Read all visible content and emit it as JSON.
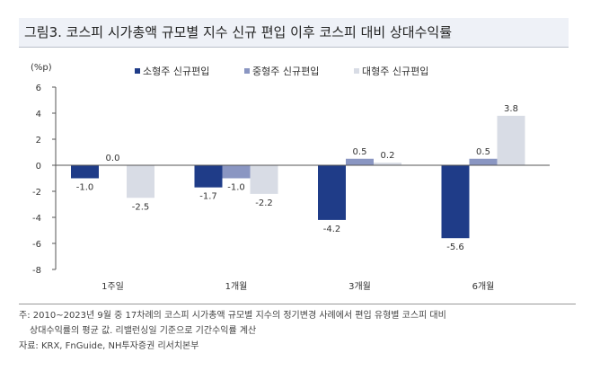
{
  "title": "그림3. 코스피 시가총액 규모별 지수 신규 편입 이후 코스피 대비 상대수익률",
  "chart_data": {
    "type": "bar",
    "title": "그림3. 코스피 시가총액 규모별 지수 신규 편입 이후 코스피 대비 상대수익률",
    "ylabel": "(%p)",
    "ylim": [
      -8,
      6
    ],
    "yticks": [
      6,
      4,
      2,
      0,
      -2,
      -4,
      -6,
      -8
    ],
    "categories": [
      "1주일",
      "1개월",
      "3개월",
      "6개월"
    ],
    "legend_position": "top",
    "series": [
      {
        "name": "소형주 신규편입",
        "color": "#1f3c88",
        "values": [
          -1.0,
          -1.7,
          -4.2,
          -5.6
        ]
      },
      {
        "name": "중형주 신규편입",
        "color": "#8a96c2",
        "values": [
          0.0,
          -1.0,
          0.5,
          0.5
        ]
      },
      {
        "name": "대형주 신규편입",
        "color": "#d8dce5",
        "values": [
          -2.5,
          -2.2,
          0.2,
          3.8
        ]
      }
    ]
  },
  "notes": {
    "line1": "주: 2010~2023년 9월 중 17차례의 코스피 시가총액 규모별 지수의 정기변경 사례에서 편입 유형별 코스피 대비",
    "line2": "상대수익률의 평균 값. 리밸런싱일 기준으로 기간수익률 계산",
    "source": "자료: KRX, FnGuide, NH투자증권 리서치본부"
  }
}
